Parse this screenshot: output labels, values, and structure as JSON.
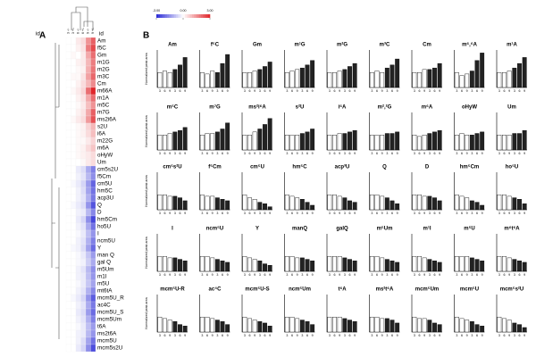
{
  "heatmap": {
    "panel_label": "A",
    "id_label": "id",
    "column_labels": [
      "3 -/-",
      "3 +/-",
      "6 -/-",
      "6 +/-",
      "9 -/-",
      "9 +/-"
    ],
    "colors": {
      "low": "#2b2bd6",
      "mid": "#ffffff",
      "high": "#e0262b"
    },
    "colorbar": {
      "lim": [
        -3,
        3
      ],
      "ticks": [
        {
          "value": -3,
          "label": "-3.00"
        },
        {
          "value": 0,
          "label": "0.00"
        },
        {
          "value": 3,
          "label": "3.00"
        }
      ]
    },
    "rows": [
      {
        "label": "Am",
        "values": [
          0,
          0,
          0.3,
          0.5,
          1.5,
          2.2
        ]
      },
      {
        "label": "f5C",
        "values": [
          0,
          0,
          0.2,
          0.4,
          1.8,
          2.5
        ]
      },
      {
        "label": "Gm",
        "values": [
          0,
          0.1,
          0,
          0.3,
          1.2,
          2.0
        ]
      },
      {
        "label": "m1G",
        "values": [
          0,
          0,
          0.2,
          0.3,
          1.0,
          1.8
        ]
      },
      {
        "label": "m2G",
        "values": [
          0,
          0,
          0.1,
          0.2,
          1.1,
          1.9
        ]
      },
      {
        "label": "m3C",
        "values": [
          0,
          0.1,
          0.1,
          0.4,
          1.3,
          2.1
        ]
      },
      {
        "label": "Cm",
        "values": [
          0,
          0,
          0.2,
          0.5,
          1.0,
          1.6
        ]
      },
      {
        "label": "m66A",
        "values": [
          0,
          0.1,
          0.3,
          0.6,
          2.0,
          3.0
        ]
      },
      {
        "label": "m1A",
        "values": [
          0,
          0,
          0.2,
          0.4,
          1.2,
          2.0
        ]
      },
      {
        "label": "m5C",
        "values": [
          0,
          0,
          0.1,
          0.3,
          0.9,
          1.5
        ]
      },
      {
        "label": "m7G",
        "values": [
          0,
          0,
          0.2,
          0.4,
          1.2,
          2.2
        ]
      },
      {
        "label": "ms2i6A",
        "values": [
          0,
          0.1,
          0.3,
          0.5,
          1.4,
          2.4
        ]
      },
      {
        "label": "s2U",
        "values": [
          0,
          0,
          0.1,
          0.2,
          0.6,
          1.0
        ]
      },
      {
        "label": "i6A",
        "values": [
          0,
          0,
          0.1,
          0.2,
          0.5,
          0.9
        ]
      },
      {
        "label": "m22G",
        "values": [
          0,
          0,
          0.1,
          0.1,
          0.3,
          0.6
        ]
      },
      {
        "label": "m6A",
        "values": [
          0,
          0,
          0.1,
          0.2,
          0.5,
          0.8
        ]
      },
      {
        "label": "oHyW",
        "values": [
          0,
          0,
          0.1,
          0.2,
          0.3,
          0.5
        ]
      },
      {
        "label": "Um",
        "values": [
          0,
          0,
          0,
          0.1,
          0.3,
          0.5
        ]
      },
      {
        "label": "cm5s2U",
        "values": [
          0,
          0,
          -0.3,
          -0.5,
          -1.2,
          -1.8
        ]
      },
      {
        "label": "f5Cm",
        "values": [
          0,
          0,
          -0.2,
          -0.4,
          -1.0,
          -1.6
        ]
      },
      {
        "label": "cm5U",
        "values": [
          0,
          -0.1,
          -0.3,
          -0.6,
          -1.4,
          -2.2
        ]
      },
      {
        "label": "hm5C",
        "values": [
          0,
          0,
          -0.2,
          -0.5,
          -1.3,
          -2.0
        ]
      },
      {
        "label": "acp3U",
        "values": [
          0,
          0,
          -0.2,
          -0.4,
          -1.1,
          -1.9
        ]
      },
      {
        "label": "Q",
        "values": [
          0,
          -0.1,
          -0.3,
          -0.5,
          -1.5,
          -2.4
        ]
      },
      {
        "label": "D",
        "values": [
          0,
          0,
          -0.2,
          -0.3,
          -1.0,
          -1.7
        ]
      },
      {
        "label": "hm5Cm",
        "values": [
          0,
          0,
          -0.3,
          -0.6,
          -1.6,
          -2.6
        ]
      },
      {
        "label": "ho5U",
        "values": [
          0,
          0,
          -0.2,
          -0.4,
          -1.2,
          -2.0
        ]
      },
      {
        "label": "I",
        "values": [
          0,
          0,
          -0.1,
          -0.3,
          -0.9,
          -1.5
        ]
      },
      {
        "label": "ncm5U",
        "values": [
          0,
          0,
          -0.2,
          -0.4,
          -1.1,
          -1.8
        ]
      },
      {
        "label": "Y",
        "values": [
          0,
          -0.1,
          -0.2,
          -0.5,
          -1.3,
          -2.1
        ]
      },
      {
        "label": "man Q",
        "values": [
          0,
          0,
          -0.1,
          -0.3,
          -0.8,
          -1.4
        ]
      },
      {
        "label": "gal Q",
        "values": [
          0,
          0,
          -0.1,
          -0.2,
          -0.7,
          -1.2
        ]
      },
      {
        "label": "m5Um",
        "values": [
          0,
          0,
          -0.2,
          -0.4,
          -1.0,
          -1.6
        ]
      },
      {
        "label": "m1I",
        "values": [
          0,
          0,
          -0.2,
          -0.3,
          -0.9,
          -1.5
        ]
      },
      {
        "label": "m5U",
        "values": [
          0,
          0,
          -0.1,
          -0.3,
          -0.8,
          -1.3
        ]
      },
      {
        "label": "mt6tA",
        "values": [
          0,
          0,
          -0.2,
          -0.4,
          -1.1,
          -1.7
        ]
      },
      {
        "label": "mcm5U_R",
        "values": [
          0,
          -0.1,
          -0.3,
          -0.6,
          -1.5,
          -2.3
        ]
      },
      {
        "label": "ac4C",
        "values": [
          0,
          0,
          -0.2,
          -0.4,
          -1.2,
          -1.9
        ]
      },
      {
        "label": "mcm5U_S",
        "values": [
          0,
          0,
          -0.3,
          -0.5,
          -1.4,
          -2.1
        ]
      },
      {
        "label": "mcm5Um",
        "values": [
          0,
          0,
          -0.2,
          -0.4,
          -1.1,
          -1.8
        ]
      },
      {
        "label": "t6A",
        "values": [
          0,
          0,
          -0.1,
          -0.3,
          -0.9,
          -1.4
        ]
      },
      {
        "label": "ms2t6A",
        "values": [
          0,
          0,
          -0.2,
          -0.3,
          -1.0,
          -1.5
        ]
      },
      {
        "label": "mcm5U",
        "values": [
          0,
          0,
          -0.2,
          -0.5,
          -1.3,
          -2.0
        ]
      },
      {
        "label": "mcm5s2U",
        "values": [
          0,
          0,
          -0.3,
          -0.6,
          -1.6,
          -2.5
        ]
      }
    ]
  },
  "panel_b": {
    "panel_label": "B",
    "y_label": "Normalized peak area",
    "categories": [
      "3",
      "6",
      "9",
      "3",
      "6",
      "9"
    ],
    "bar_colors": [
      "#ffffff",
      "#ffffff",
      "#ffffff",
      "#222222",
      "#222222",
      "#222222"
    ],
    "ylim": [
      0,
      2.5
    ],
    "charts": [
      {
        "title": "Am",
        "values": [
          1,
          1.1,
          1,
          1.2,
          1.5,
          2.0
        ]
      },
      {
        "title": "f⁵C",
        "values": [
          1,
          0.9,
          1.1,
          1.0,
          1.6,
          2.2
        ]
      },
      {
        "title": "Gm",
        "values": [
          1,
          1.0,
          1.1,
          1.2,
          1.4,
          1.7
        ]
      },
      {
        "title": "m¹G",
        "values": [
          1,
          1.1,
          1.2,
          1.3,
          1.5,
          1.8
        ]
      },
      {
        "title": "m²G",
        "values": [
          1,
          1.0,
          1.1,
          1.2,
          1.4,
          1.6
        ]
      },
      {
        "title": "m³C",
        "values": [
          1,
          1.1,
          1.0,
          1.3,
          1.5,
          1.9
        ]
      },
      {
        "title": "Cm",
        "values": [
          1,
          1.0,
          1.2,
          1.2,
          1.3,
          1.6
        ]
      },
      {
        "title": "m⁶,⁶A",
        "values": [
          1,
          0.8,
          0.9,
          1.1,
          1.8,
          2.3
        ]
      },
      {
        "title": "m¹A",
        "values": [
          1,
          1.0,
          1.1,
          1.3,
          1.6,
          2.0
        ]
      },
      {
        "title": "m⁵C",
        "values": [
          1,
          1.0,
          1.1,
          1.2,
          1.3,
          1.5
        ]
      },
      {
        "title": "m⁷G",
        "values": [
          1,
          1.1,
          1.1,
          1.2,
          1.4,
          1.8
        ]
      },
      {
        "title": "ms²i⁶A",
        "values": [
          1,
          1.0,
          1.2,
          1.4,
          1.7,
          2.1
        ]
      },
      {
        "title": "s²U",
        "values": [
          1,
          1.0,
          1.0,
          1.1,
          1.2,
          1.4
        ]
      },
      {
        "title": "i⁶A",
        "values": [
          1,
          1.0,
          1.1,
          1.1,
          1.2,
          1.3
        ]
      },
      {
        "title": "m²,²G",
        "values": [
          1,
          1.0,
          1.0,
          1.1,
          1.1,
          1.2
        ]
      },
      {
        "title": "m⁶A",
        "values": [
          1,
          0.9,
          1.0,
          1.1,
          1.2,
          1.3
        ]
      },
      {
        "title": "oHyW",
        "values": [
          1,
          1.1,
          1.0,
          1.0,
          1.1,
          1.2
        ]
      },
      {
        "title": "Um",
        "values": [
          1,
          1.0,
          1.0,
          1.1,
          1.1,
          1.3
        ]
      },
      {
        "title": "cm⁵s²U",
        "values": [
          1,
          1.0,
          0.9,
          0.9,
          0.8,
          0.6
        ]
      },
      {
        "title": "f⁵Cm",
        "values": [
          1,
          0.9,
          0.9,
          0.8,
          0.7,
          0.6
        ]
      },
      {
        "title": "cm⁵U",
        "values": [
          1,
          0.8,
          0.7,
          0.5,
          0.4,
          0.2
        ]
      },
      {
        "title": "hm⁵C",
        "values": [
          1,
          0.9,
          0.8,
          0.7,
          0.5,
          0.3
        ]
      },
      {
        "title": "acp³U",
        "values": [
          1,
          1.0,
          0.9,
          0.8,
          0.6,
          0.5
        ]
      },
      {
        "title": "Q",
        "values": [
          1,
          1.0,
          0.9,
          0.8,
          0.6,
          0.4
        ]
      },
      {
        "title": "D",
        "values": [
          1,
          1.0,
          0.9,
          0.9,
          0.8,
          0.6
        ]
      },
      {
        "title": "hm⁵Cm",
        "values": [
          1,
          0.9,
          0.8,
          0.6,
          0.5,
          0.3
        ]
      },
      {
        "title": "ho⁵U",
        "values": [
          1,
          1.0,
          0.9,
          0.8,
          0.7,
          0.4
        ]
      },
      {
        "title": "I",
        "values": [
          1,
          1.0,
          0.9,
          0.9,
          0.8,
          0.7
        ]
      },
      {
        "title": "ncm⁵U",
        "values": [
          1,
          1.0,
          0.9,
          0.8,
          0.7,
          0.6
        ]
      },
      {
        "title": "Y",
        "values": [
          1,
          0.9,
          0.8,
          0.7,
          0.5,
          0.4
        ]
      },
      {
        "title": "manQ",
        "values": [
          1,
          1.0,
          0.9,
          0.9,
          0.8,
          0.7
        ]
      },
      {
        "title": "galQ",
        "values": [
          1,
          1.0,
          1.0,
          0.9,
          0.8,
          0.7
        ]
      },
      {
        "title": "m⁵Um",
        "values": [
          1,
          1.0,
          0.9,
          0.8,
          0.7,
          0.6
        ]
      },
      {
        "title": "m¹I",
        "values": [
          1,
          1.0,
          0.9,
          0.8,
          0.7,
          0.6
        ]
      },
      {
        "title": "m⁵U",
        "values": [
          1,
          1.0,
          1.0,
          0.9,
          0.8,
          0.7
        ]
      },
      {
        "title": "m⁶t⁶A",
        "values": [
          1,
          1.0,
          0.9,
          0.8,
          0.7,
          0.6
        ]
      },
      {
        "title": "mcm⁵U-R",
        "values": [
          1,
          0.9,
          0.8,
          0.7,
          0.5,
          0.4
        ]
      },
      {
        "title": "ac⁴C",
        "values": [
          1,
          1.0,
          0.9,
          0.8,
          0.7,
          0.5
        ]
      },
      {
        "title": "mcm⁵U-S",
        "values": [
          1,
          0.9,
          0.8,
          0.7,
          0.6,
          0.4
        ]
      },
      {
        "title": "ncm⁵Um",
        "values": [
          1,
          1.0,
          0.9,
          0.8,
          0.7,
          0.5
        ]
      },
      {
        "title": "t⁶A",
        "values": [
          1,
          1.0,
          1.0,
          0.9,
          0.8,
          0.7
        ]
      },
      {
        "title": "ms²t⁶A",
        "values": [
          1,
          1.0,
          0.9,
          0.9,
          0.8,
          0.6
        ]
      },
      {
        "title": "mcm⁵Um",
        "values": [
          1,
          0.9,
          0.9,
          0.8,
          0.6,
          0.5
        ]
      },
      {
        "title": "mcm⁵U",
        "values": [
          1,
          0.9,
          0.8,
          0.7,
          0.5,
          0.4
        ]
      },
      {
        "title": "mcm⁵s²U",
        "values": [
          1,
          0.9,
          0.8,
          0.6,
          0.5,
          0.3
        ]
      }
    ]
  }
}
